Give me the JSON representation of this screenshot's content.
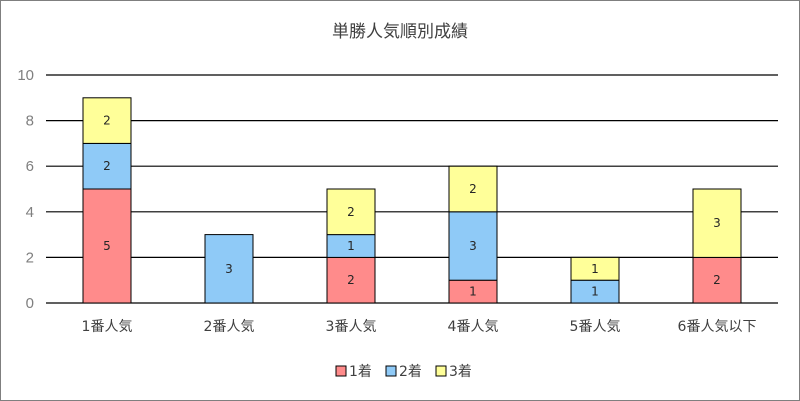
{
  "chart_data": {
    "type": "bar",
    "stacked": true,
    "title": "単勝人気順別成績",
    "categories": [
      "1番人気",
      "2番人気",
      "3番人気",
      "4番人気",
      "5番人気",
      "6番人気以下"
    ],
    "series": [
      {
        "name": "1着",
        "color": "#ff8b8b",
        "values": [
          5,
          0,
          2,
          1,
          0,
          2
        ]
      },
      {
        "name": "2着",
        "color": "#8fcaf7",
        "values": [
          2,
          3,
          1,
          3,
          1,
          0
        ]
      },
      {
        "name": "3着",
        "color": "#ffff99",
        "values": [
          2,
          0,
          2,
          2,
          1,
          3
        ]
      }
    ],
    "yticks": [
      "0",
      "2",
      "4",
      "6",
      "8",
      "10"
    ],
    "ylim": [
      0,
      10
    ],
    "grid": true,
    "legend_position": "bottom",
    "xlabel": "",
    "ylabel": ""
  }
}
